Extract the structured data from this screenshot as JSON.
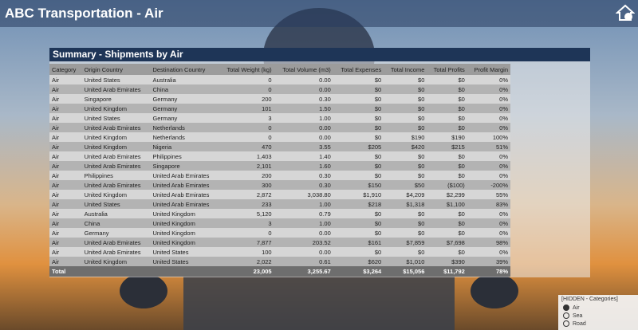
{
  "header": {
    "title": "ABC Transportation - Air"
  },
  "visual": {
    "title": "Summary - Shipments by Air"
  },
  "table": {
    "columns": [
      "Category",
      "Origin Country",
      "Destination Country",
      "Total Weight (kg)",
      "Total Volume (m3)",
      "Total Expenses",
      "Total Income",
      "Total Profits",
      "Profit Margin"
    ],
    "rows": [
      [
        "Air",
        "United States",
        "Australia",
        "0",
        "0.00",
        "$0",
        "$0",
        "$0",
        "0%"
      ],
      [
        "Air",
        "United Arab Emirates",
        "China",
        "0",
        "0.00",
        "$0",
        "$0",
        "$0",
        "0%"
      ],
      [
        "Air",
        "Singapore",
        "Germany",
        "200",
        "0.30",
        "$0",
        "$0",
        "$0",
        "0%"
      ],
      [
        "Air",
        "United Kingdom",
        "Germany",
        "101",
        "1.50",
        "$0",
        "$0",
        "$0",
        "0%"
      ],
      [
        "Air",
        "United States",
        "Germany",
        "3",
        "1.00",
        "$0",
        "$0",
        "$0",
        "0%"
      ],
      [
        "Air",
        "United Arab Emirates",
        "Netherlands",
        "0",
        "0.00",
        "$0",
        "$0",
        "$0",
        "0%"
      ],
      [
        "Air",
        "United Kingdom",
        "Netherlands",
        "0",
        "0.00",
        "$0",
        "$190",
        "$190",
        "100%"
      ],
      [
        "Air",
        "United Kingdom",
        "Nigeria",
        "470",
        "3.55",
        "$205",
        "$420",
        "$215",
        "51%"
      ],
      [
        "Air",
        "United Arab Emirates",
        "Philippines",
        "1,403",
        "1.40",
        "$0",
        "$0",
        "$0",
        "0%"
      ],
      [
        "Air",
        "United Arab Emirates",
        "Singapore",
        "2,101",
        "1.60",
        "$0",
        "$0",
        "$0",
        "0%"
      ],
      [
        "Air",
        "Philippines",
        "United Arab Emirates",
        "200",
        "0.30",
        "$0",
        "$0",
        "$0",
        "0%"
      ],
      [
        "Air",
        "United Arab Emirates",
        "United Arab Emirates",
        "300",
        "0.30",
        "$150",
        "$50",
        "($100)",
        "-200%"
      ],
      [
        "Air",
        "United Kingdom",
        "United Arab Emirates",
        "2,872",
        "3,038.80",
        "$1,910",
        "$4,209",
        "$2,299",
        "55%"
      ],
      [
        "Air",
        "United States",
        "United Arab Emirates",
        "233",
        "1.00",
        "$218",
        "$1,318",
        "$1,100",
        "83%"
      ],
      [
        "Air",
        "Australia",
        "United Kingdom",
        "5,120",
        "0.79",
        "$0",
        "$0",
        "$0",
        "0%"
      ],
      [
        "Air",
        "China",
        "United Kingdom",
        "3",
        "1.00",
        "$0",
        "$0",
        "$0",
        "0%"
      ],
      [
        "Air",
        "Germany",
        "United Kingdom",
        "0",
        "0.00",
        "$0",
        "$0",
        "$0",
        "0%"
      ],
      [
        "Air",
        "United Arab Emirates",
        "United Kingdom",
        "7,877",
        "203.52",
        "$161",
        "$7,859",
        "$7,698",
        "98%"
      ],
      [
        "Air",
        "United Arab Emirates",
        "United States",
        "100",
        "0.00",
        "$0",
        "$0",
        "$0",
        "0%"
      ],
      [
        "Air",
        "United Kingdom",
        "United States",
        "2,022",
        "0.61",
        "$620",
        "$1,010",
        "$390",
        "39%"
      ]
    ],
    "total": {
      "label": "Total",
      "values": [
        "23,005",
        "3,255.67",
        "$3,264",
        "$15,056",
        "$11,792",
        "78%"
      ]
    }
  },
  "slicer": {
    "title": "[HIDDEN - Categories]",
    "options": [
      "Air",
      "Sea",
      "Road"
    ]
  }
}
